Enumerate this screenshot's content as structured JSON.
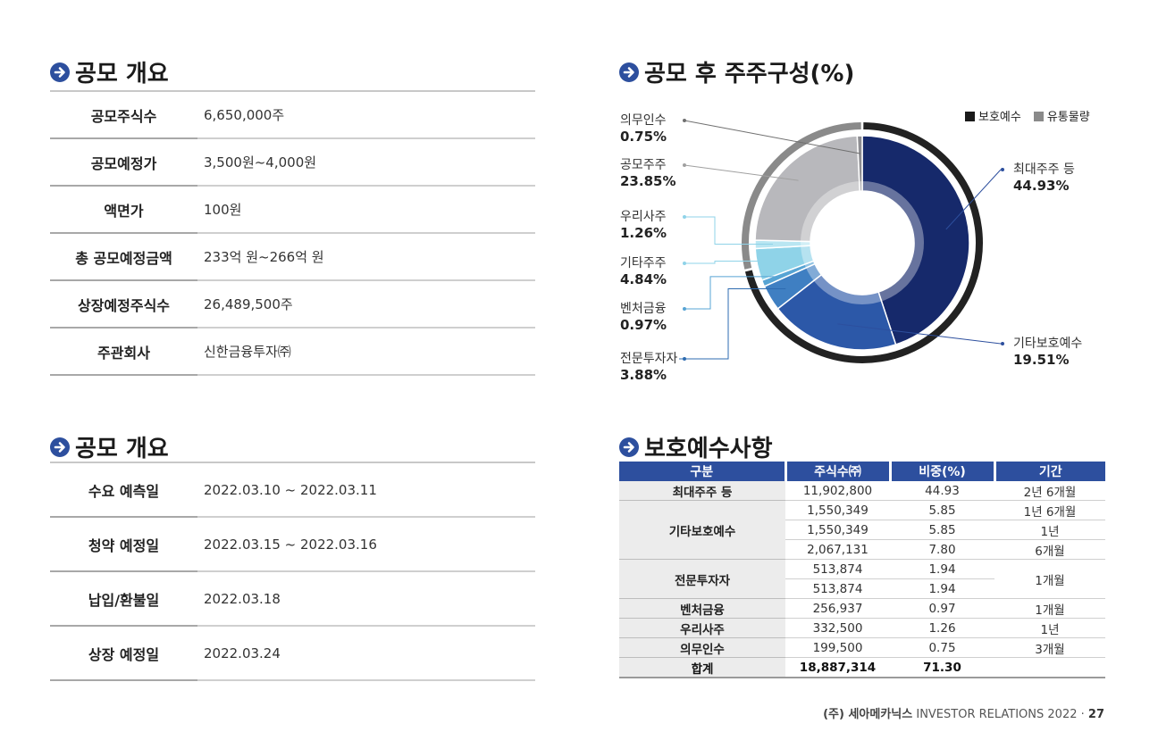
{
  "section1": {
    "title": "공모 개요",
    "rows": [
      {
        "label": "공모주식수",
        "value": "6,650,000주"
      },
      {
        "label": "공모예정가",
        "value": "3,500원~4,000원"
      },
      {
        "label": "액면가",
        "value": "100원"
      },
      {
        "label": "총 공모예정금액",
        "value": "233억 원~266억 원"
      },
      {
        "label": "상장예정주식수",
        "value": "26,489,500주"
      },
      {
        "label": "주관회사",
        "value": "신한금융투자㈜"
      }
    ]
  },
  "section2": {
    "title": "공모 개요",
    "rows": [
      {
        "label": "수요 예측일",
        "value": "2022.03.10 ~ 2022.03.11"
      },
      {
        "label": "청약 예정일",
        "value": "2022.03.15 ~ 2022.03.16"
      },
      {
        "label": "납입/환불일",
        "value": "2022.03.18"
      },
      {
        "label": "상장 예정일",
        "value": "2022.03.24"
      }
    ]
  },
  "section3": {
    "title": "공모 후 주주구성(%)",
    "legend": [
      {
        "label": "보호예수",
        "color": "#1a1a1a"
      },
      {
        "label": "유통물량",
        "color": "#8a8a8a"
      }
    ]
  },
  "chart_data": {
    "type": "pie",
    "variant": "donut",
    "categories": [
      "최대주주 등",
      "기타보호예수",
      "전문투자자",
      "벤처금융",
      "기타주주",
      "우리사주",
      "공모주주",
      "의무인수"
    ],
    "values": [
      44.93,
      19.51,
      3.88,
      0.97,
      4.84,
      1.26,
      23.85,
      0.75
    ],
    "value_labels": [
      "44.93%",
      "19.51%",
      "3.88%",
      "0.97%",
      "4.84%",
      "1.26%",
      "23.85%",
      "0.75%"
    ],
    "colors": [
      "#16296b",
      "#2c58a8",
      "#3f7fc2",
      "#57a4d4",
      "#8fd3e8",
      "#b9e6f2",
      "#b8b8bc",
      "#8d8d91"
    ],
    "outer_ring": [
      {
        "label": "보호예수",
        "value": 71.3,
        "color": "#222222"
      },
      {
        "label": "유통물량",
        "value": 28.7,
        "color": "#8a8a8a"
      }
    ]
  },
  "section4": {
    "title": "보호예수사항",
    "headers": [
      "구분",
      "주식수㈜",
      "비중(%)",
      "기간"
    ],
    "groups": [
      {
        "category": "최대주주 등",
        "rows": [
          [
            "11,902,800",
            "44.93",
            "2년 6개월"
          ]
        ]
      },
      {
        "category": "기타보호예수",
        "rows": [
          [
            "1,550,349",
            "5.85",
            "1년 6개월"
          ],
          [
            "1,550,349",
            "5.85",
            "1년"
          ],
          [
            "2,067,131",
            "7.80",
            "6개월"
          ]
        ]
      },
      {
        "category": "전문투자자",
        "rows": [
          [
            "513,874",
            "1.94",
            "1개월"
          ],
          [
            "513,874",
            "1.94",
            ""
          ]
        ]
      },
      {
        "category": "벤처금융",
        "rows": [
          [
            "256,937",
            "0.97",
            "1개월"
          ]
        ]
      },
      {
        "category": "우리사주",
        "rows": [
          [
            "332,500",
            "1.26",
            "1년"
          ]
        ]
      },
      {
        "category": "의무인수",
        "rows": [
          [
            "199,500",
            "0.75",
            "3개월"
          ]
        ]
      }
    ],
    "total": {
      "category": "합계",
      "shares": "18,887,314",
      "ratio": "71.30",
      "period": ""
    }
  },
  "footer": {
    "logo": "(주) 세아메카닉스",
    "text": "INVESTOR RELATIONS 2022 ·",
    "page": "27"
  }
}
